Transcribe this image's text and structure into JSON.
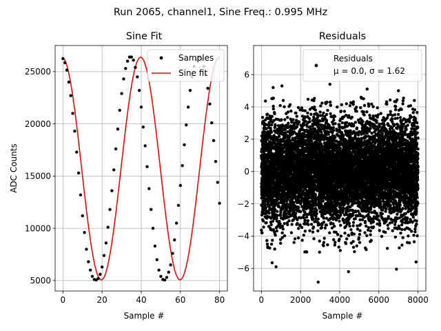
{
  "figure": {
    "suptitle": "Run 2065, channel1, Sine Freq.: 0.995 MHz"
  },
  "chart_data": [
    {
      "type": "scatter",
      "title": "Sine Fit",
      "xlabel": "Sample #",
      "ylabel": "ADC Counts",
      "xlim": [
        -4,
        84
      ],
      "ylim": [
        4000,
        27500
      ],
      "xticks": [
        0,
        20,
        40,
        60,
        80
      ],
      "yticks": [
        5000,
        10000,
        15000,
        20000,
        25000
      ],
      "grid": true,
      "legend_position": "upper right",
      "series": [
        {
          "name": "Samples",
          "kind": "scatter",
          "color": "#000000",
          "x": [
            0,
            1,
            2,
            3,
            4,
            5,
            6,
            7,
            8,
            9,
            10,
            11,
            12,
            13,
            14,
            15,
            16,
            17,
            18,
            19,
            20,
            21,
            22,
            23,
            24,
            25,
            26,
            27,
            28,
            29,
            30,
            31,
            32,
            33,
            34,
            35,
            36,
            37,
            38,
            39,
            40,
            41,
            42,
            43,
            44,
            45,
            46,
            47,
            48,
            49,
            50,
            51,
            52,
            53,
            54,
            55,
            56,
            57,
            58,
            59,
            60,
            61,
            62,
            63,
            64,
            65,
            66,
            67,
            68,
            69,
            70,
            71,
            72,
            73,
            74,
            75,
            76,
            77,
            78,
            79,
            80
          ],
          "y": [
            26250,
            25850,
            25150,
            24000,
            22700,
            21000,
            19300,
            17300,
            15300,
            13200,
            11200,
            9600,
            8000,
            6800,
            6000,
            5400,
            5100,
            5050,
            5200,
            5600,
            6300,
            7400,
            8600,
            10100,
            11800,
            13600,
            15600,
            17600,
            19500,
            21300,
            22900,
            24300,
            25300,
            26000,
            26400,
            26400,
            26100,
            25400,
            24500,
            23200,
            21600,
            19700,
            17900,
            15900,
            13800,
            11800,
            10000,
            8300,
            7000,
            6000,
            5400,
            5100,
            5050,
            5300,
            5800,
            6500,
            7600,
            8900,
            10500,
            12200,
            14100,
            16000,
            18000,
            19900,
            21600,
            23200,
            24500,
            25500,
            26100,
            26400,
            26400,
            26200,
            25500,
            24700,
            23400,
            21900,
            20100,
            18400,
            16400,
            14400,
            12400
          ]
        },
        {
          "name": "Sine fit",
          "kind": "line",
          "color": "#ff0000",
          "function": {
            "offset": 15725,
            "amplitude": 10650,
            "period_samples": 40.2,
            "peak_at_sample": -0.5,
            "x_range": [
              0,
              80
            ]
          }
        }
      ]
    },
    {
      "type": "scatter",
      "title": "Residuals",
      "xlabel": "Sample #",
      "ylabel": "",
      "xlim": [
        -400,
        8400
      ],
      "ylim": [
        -7.4,
        7.8
      ],
      "xticks": [
        0,
        2000,
        4000,
        6000,
        8000
      ],
      "yticks": [
        -6,
        -4,
        -2,
        0,
        2,
        4,
        6
      ],
      "grid": true,
      "legend_position": "upper right",
      "series": [
        {
          "name": "Residuals",
          "label_lines": [
            "Residuals",
            "μ = 0.0, σ = 1.62"
          ],
          "kind": "scatter",
          "color": "#000000",
          "n_points": 8000,
          "mean": 0.0,
          "sigma": 1.62,
          "x_range": [
            0,
            8000
          ],
          "outliers": [
            {
              "x": 2900,
              "y": -6.85
            },
            {
              "x": 4450,
              "y": -6.2
            },
            {
              "x": 550,
              "y": -5.65
            },
            {
              "x": 750,
              "y": -5.9
            },
            {
              "x": 6900,
              "y": -6.05
            },
            {
              "x": 7900,
              "y": -5.6
            },
            {
              "x": 600,
              "y": 5.2
            },
            {
              "x": 1050,
              "y": 5.3
            },
            {
              "x": 3500,
              "y": 5.4
            },
            {
              "x": 5400,
              "y": 5.1
            },
            {
              "x": 7000,
              "y": 5.0
            }
          ]
        }
      ]
    }
  ]
}
